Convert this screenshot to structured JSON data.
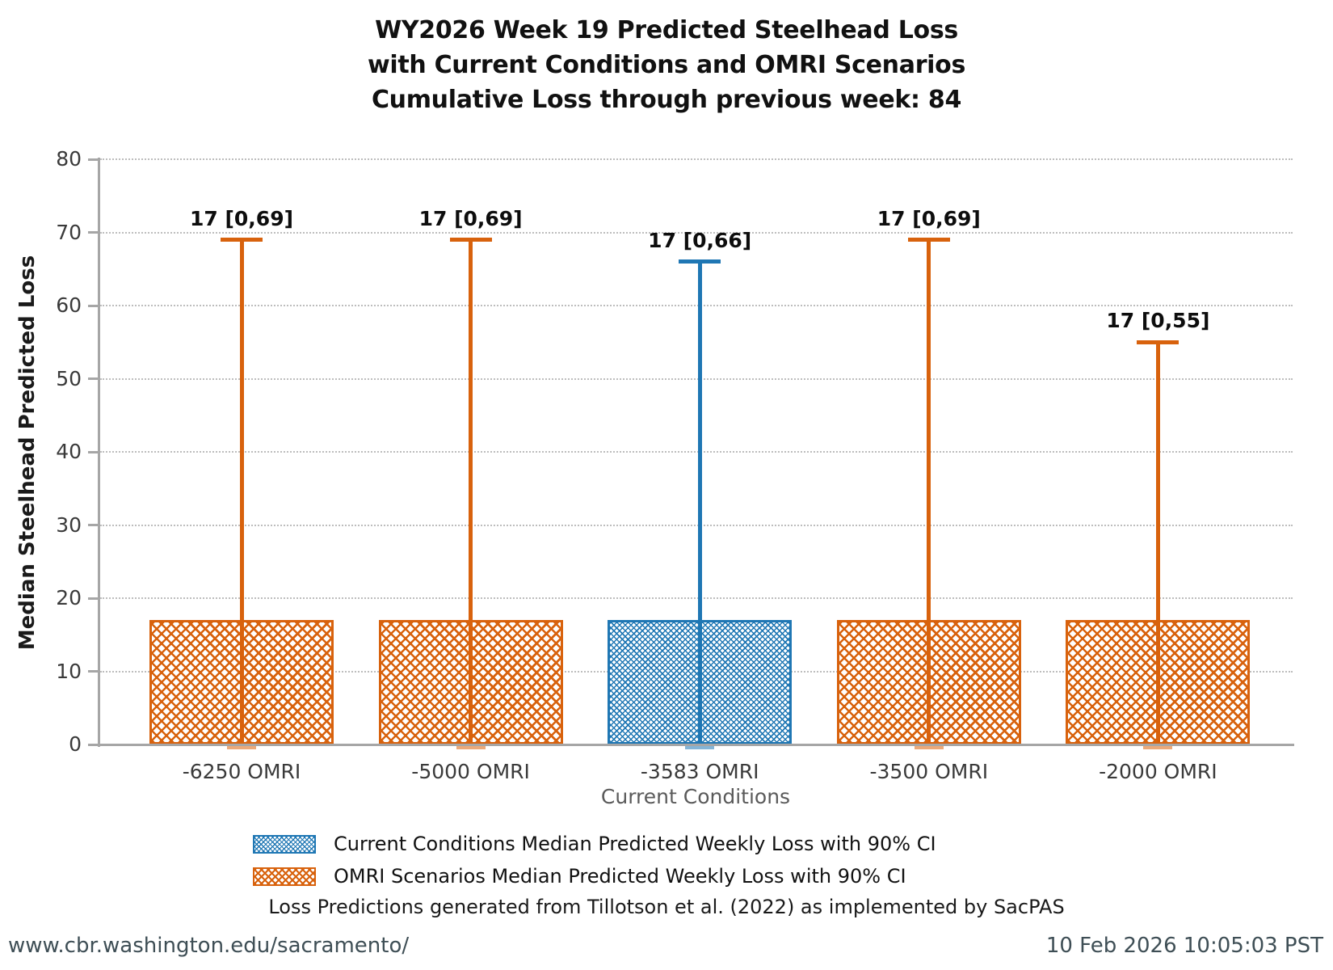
{
  "page": {
    "footer_left": "www.cbr.washington.edu/sacramento/",
    "footer_right": "10 Feb 2026 10:05:03 PST"
  },
  "chart_data": {
    "type": "bar",
    "title_lines": [
      "WY2026 Week 19 Predicted Steelhead Loss",
      "with Current Conditions and OMRI Scenarios",
      "Cumulative Loss through previous week: 84"
    ],
    "ylabel": "Median Steelhead Predicted Loss",
    "xlabel": "Current Conditions",
    "ylim": [
      0,
      80
    ],
    "yticks": [
      0,
      10,
      20,
      30,
      40,
      50,
      60,
      70,
      80
    ],
    "grid": "horizontal dotted",
    "legend_position": "bottom-left",
    "categories": [
      "-6250 OMRI",
      "-5000 OMRI",
      "-3583 OMRI",
      "-3500 OMRI",
      "-2000 OMRI"
    ],
    "bars": [
      {
        "category": "-6250 OMRI",
        "median": 17,
        "ci90": [
          0,
          69
        ],
        "label": "17 [0,69]",
        "series": "omri"
      },
      {
        "category": "-5000 OMRI",
        "median": 17,
        "ci90": [
          0,
          69
        ],
        "label": "17 [0,69]",
        "series": "omri"
      },
      {
        "category": "-3583 OMRI",
        "median": 17,
        "ci90": [
          0,
          66
        ],
        "label": "17 [0,66]",
        "series": "current"
      },
      {
        "category": "-3500 OMRI",
        "median": 17,
        "ci90": [
          0,
          69
        ],
        "label": "17 [0,69]",
        "series": "omri"
      },
      {
        "category": "-2000 OMRI",
        "median": 17,
        "ci90": [
          0,
          55
        ],
        "label": "17 [0,55]",
        "series": "omri"
      }
    ],
    "legend": [
      {
        "series": "current",
        "label": "Current Conditions Median Predicted Weekly Loss with 90% CI"
      },
      {
        "series": "omri",
        "label": "OMRI Scenarios Median Predicted Weekly Loss with 90% CI"
      }
    ],
    "caption": "Loss Predictions generated from Tillotson et al. (2022) as implemented by SacPAS",
    "colors": {
      "current": "#1f77b4",
      "omri": "#d8620d",
      "axis": "#a6a6a6",
      "grid": "#bdbdbd",
      "tick_text": "#3a3a3a",
      "xlabel_text": "#5a5a5a",
      "footer_text": "#3e4e55"
    }
  }
}
